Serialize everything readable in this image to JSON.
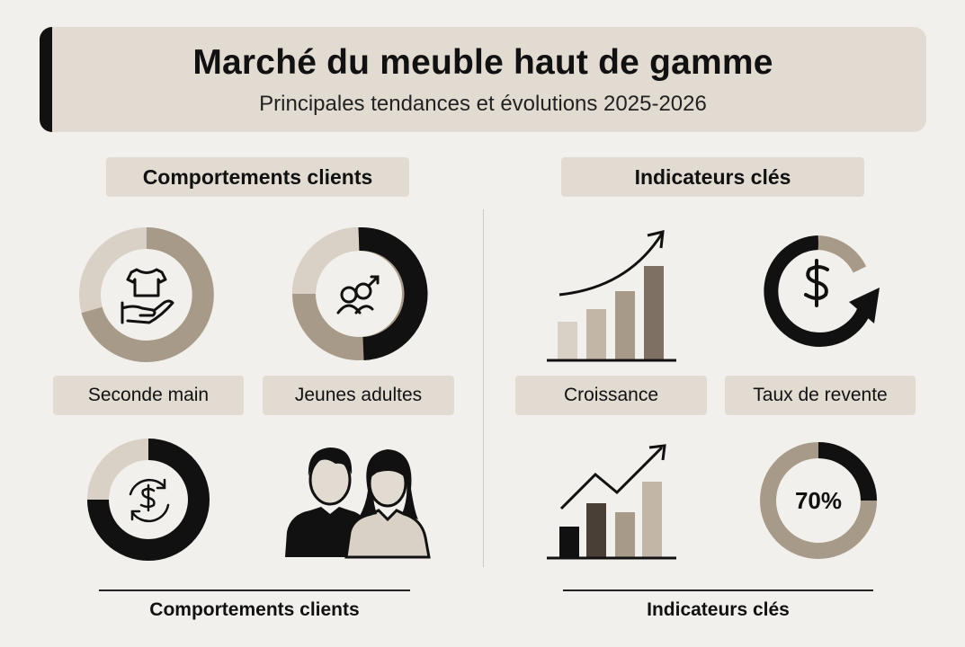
{
  "header": {
    "title": "Marché du meuble haut de gamme",
    "subtitle": "Principales tendances et évolutions 2025-2026"
  },
  "left_section": {
    "header": "Comportements clients",
    "items": [
      {
        "label": "Seconde main",
        "icon": "tshirt-hand-icon"
      },
      {
        "label": "Jeunes adultes",
        "icon": "gender-icon"
      },
      {
        "label": "",
        "icon": "recycle-dollar-icon"
      },
      {
        "label": "",
        "icon": "couple-icon"
      }
    ],
    "footer": "Comportements clients"
  },
  "right_section": {
    "header": "Indicateurs clés",
    "items": [
      {
        "label": "Croissance",
        "icon": "growth-chart-icon"
      },
      {
        "label": "Taux de revente",
        "icon": "dollar-cycle-icon"
      },
      {
        "label": "",
        "icon": "trend-chart-icon"
      },
      {
        "label": "",
        "value": "70%",
        "icon": "percentage-ring"
      }
    ],
    "footer": "Indicateurs clés"
  },
  "colors": {
    "background": "#f2f0ec",
    "beige_panel": "#e2dbd2",
    "taupe": "#a89a88",
    "light_taupe": "#d9d1c6",
    "dark": "#111111"
  }
}
